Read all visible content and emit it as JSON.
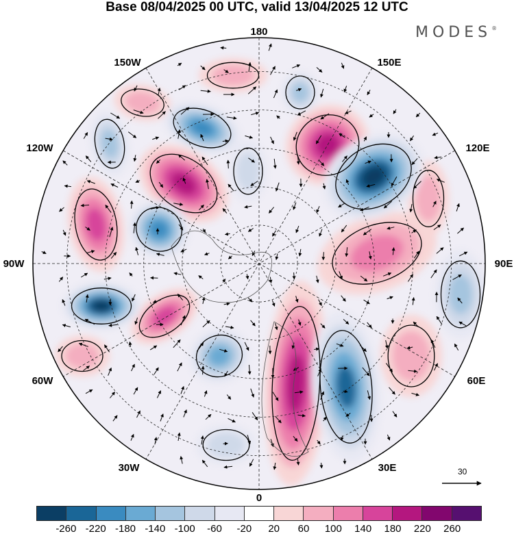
{
  "title": "Base 08/04/2025 00 UTC, valid 13/04/2025 12 UTC",
  "brand": {
    "name": "MODES",
    "mark": "®"
  },
  "longitude_labels": [
    "180",
    "150E",
    "120E",
    "90E",
    "60E",
    "30E",
    "0",
    "30W",
    "60W",
    "90W",
    "120W",
    "150W"
  ],
  "reference_vector": {
    "value": "30"
  },
  "colorbar": {
    "colors": [
      "#0b3e64",
      "#1a6697",
      "#3a8bc0",
      "#6aaad3",
      "#a5c5df",
      "#cfd9e9",
      "#e7e8f3",
      "#ffffff",
      "#f8d6d6",
      "#f4aec0",
      "#ec7eac",
      "#d7449b",
      "#b4177f",
      "#82066e",
      "#561070"
    ],
    "tick_labels": [
      "-260",
      "-220",
      "-180",
      "-140",
      "-100",
      "-60",
      "-20",
      "20",
      "60",
      "100",
      "140",
      "180",
      "220",
      "260"
    ]
  }
}
